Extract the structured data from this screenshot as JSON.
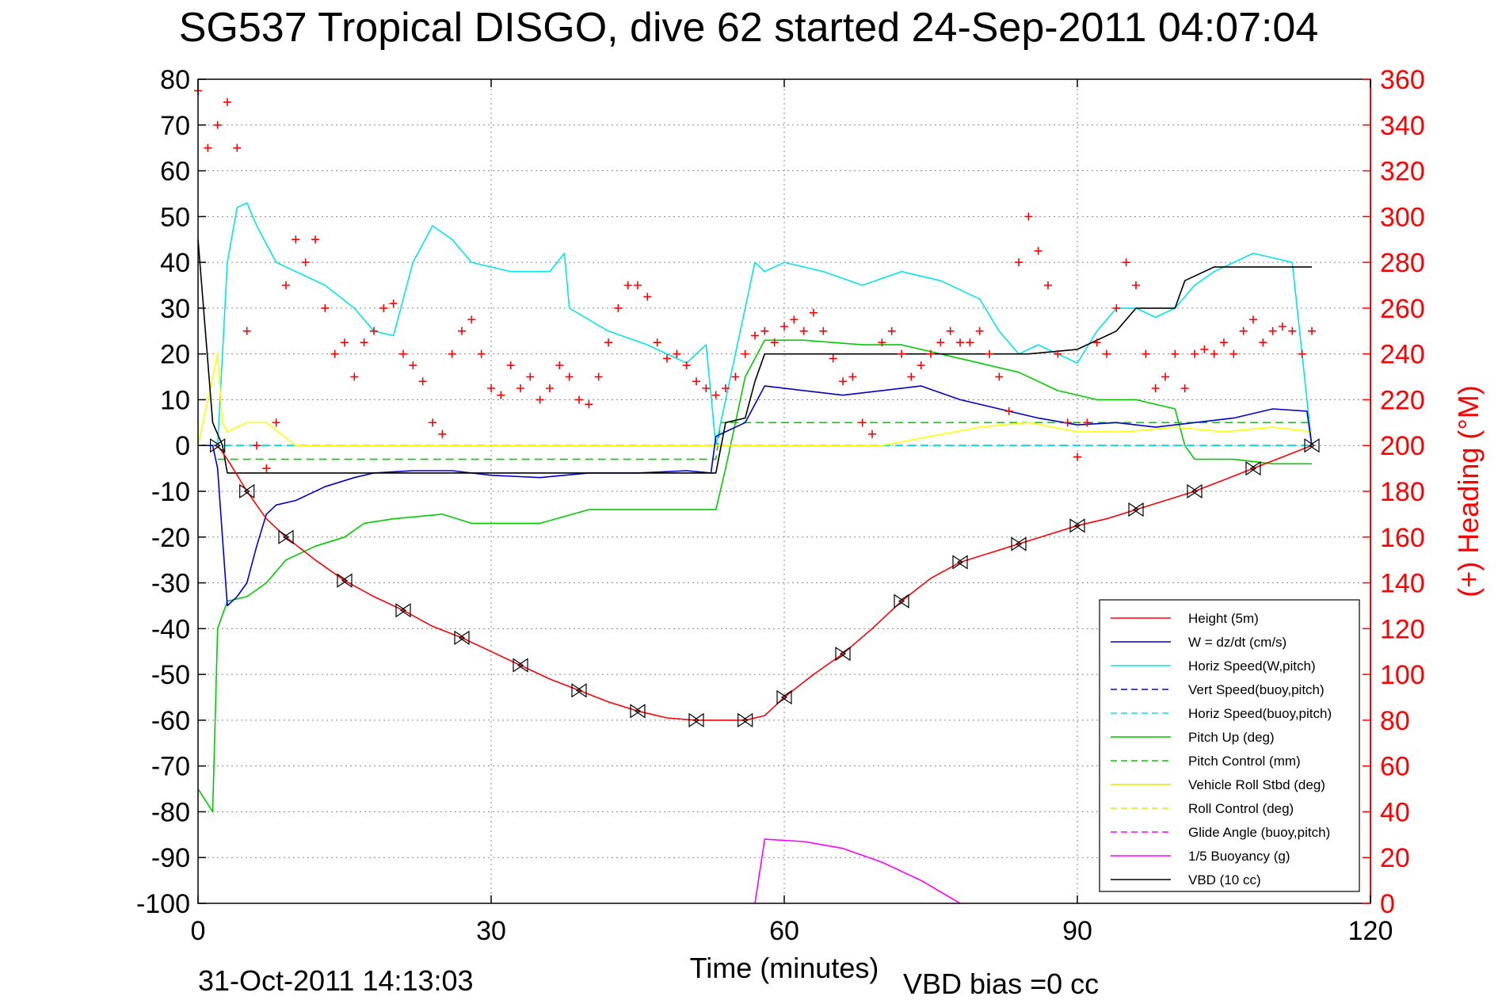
{
  "title": "SG537 Tropical DISGO, dive 62 started 24-Sep-2011 04:07:04",
  "footer": {
    "timestamp": "31-Oct-2011 14:13:03",
    "vbd_bias": "VBD bias =0 cc"
  },
  "colors": {
    "height": "#ff0000",
    "w": "#0000cc",
    "horiz_speed": "#00e5ee",
    "vert_speed_buoy": "#0000ff",
    "horiz_speed_buoy": "#00e5ee",
    "pitch_up": "#00cc00",
    "pitch_control": "#00cc00",
    "roll": "#ffff00",
    "roll_control": "#ffff00",
    "glide_angle": "#ff00ff",
    "buoyancy": "#ff00ff",
    "vbd": "#000000",
    "heading": "#ff0000"
  },
  "chart_data": {
    "type": "line",
    "title": "SG537 Tropical DISGO, dive 62 started 24-Sep-2011 04:07:04",
    "xlabel": "Time (minutes)",
    "ylabel": "",
    "ylabel_right": "(+) Heading (°M)",
    "xlim": [
      0,
      120
    ],
    "ylim": [
      -100,
      80
    ],
    "ylim_right": [
      0,
      360
    ],
    "grid": true,
    "legend_position": "bottom-right",
    "x_ticks": [
      "0",
      "30",
      "60",
      "90",
      "120"
    ],
    "y_ticks": [
      "80",
      "70",
      "60",
      "50",
      "40",
      "30",
      "20",
      "10",
      "0",
      "-10",
      "-20",
      "-30",
      "-40",
      "-50",
      "-60",
      "-70",
      "-80",
      "-90",
      "-100"
    ],
    "y_ticks_right": [
      "360",
      "340",
      "320",
      "300",
      "280",
      "260",
      "240",
      "220",
      "200",
      "180",
      "160",
      "140",
      "120",
      "100",
      "80",
      "60",
      "40",
      "20",
      "0"
    ],
    "series": [
      {
        "name": "Height (5m)",
        "style": "solid",
        "color": "#ff0000",
        "x": [
          2,
          3,
          5,
          7,
          9,
          12,
          15,
          18,
          21,
          24,
          27,
          30,
          33,
          36,
          39,
          42,
          45,
          48,
          51,
          54,
          56,
          58,
          60,
          63,
          66,
          69,
          72,
          75,
          78,
          81,
          84,
          87,
          90,
          93,
          96,
          99,
          102,
          105,
          108,
          111,
          114
        ],
        "y": [
          0,
          -3,
          -10,
          -16,
          -20,
          -25,
          -29.5,
          -33,
          -36,
          -39.5,
          -42,
          -45,
          -48,
          -51,
          -53.5,
          -56,
          -58,
          -59.5,
          -60,
          -60,
          -60,
          -59,
          -55,
          -50,
          -45.5,
          -40,
          -34,
          -29,
          -25.5,
          -23.5,
          -21.5,
          -19.5,
          -17.5,
          -16,
          -14,
          -12,
          -10,
          -7.5,
          -5,
          -2.5,
          0
        ]
      },
      {
        "name": "W = dz/dt (cm/s)",
        "style": "solid",
        "color": "#0000cc",
        "x": [
          0.5,
          1.5,
          2,
          2.5,
          3,
          4,
          5,
          6,
          7,
          8,
          10,
          13,
          16,
          18,
          22,
          26,
          30,
          35,
          40,
          45,
          50,
          52.5,
          53,
          54,
          56,
          58,
          62,
          66,
          70,
          74,
          78,
          82,
          86,
          90,
          94,
          98,
          102,
          106,
          110,
          113.5,
          114
        ],
        "y": [
          0,
          0,
          -5,
          -20,
          -35,
          -33,
          -30,
          -22,
          -15,
          -13,
          -12,
          -9,
          -7,
          -6,
          -5.5,
          -5.5,
          -6.5,
          -7,
          -6,
          -6,
          -5.5,
          -6,
          2,
          3,
          5,
          13,
          12,
          11,
          12,
          13,
          10,
          8,
          6,
          4.5,
          5,
          4,
          5,
          6,
          8,
          7.5,
          0
        ]
      },
      {
        "name": "Horiz Speed(W,pitch)",
        "style": "solid",
        "color": "#00e5ee",
        "x": [
          2,
          3,
          4,
          5,
          6,
          8,
          10,
          13,
          16,
          18,
          20,
          22,
          24,
          26,
          28,
          32,
          36,
          37.5,
          38,
          42,
          46,
          50,
          52,
          53,
          55,
          57,
          58,
          60,
          64,
          68,
          72,
          76,
          80,
          82,
          84,
          86,
          88,
          90,
          92,
          94,
          96,
          98,
          100,
          102,
          104,
          108,
          112,
          114
        ],
        "y": [
          0,
          40,
          52,
          53,
          48,
          40,
          38,
          35,
          30,
          25,
          24,
          40,
          48,
          45,
          40,
          38,
          38,
          42,
          30,
          25,
          22,
          18,
          22,
          0,
          20,
          40,
          38,
          40,
          38,
          35,
          38,
          36,
          32,
          25,
          20,
          22,
          20,
          18,
          25,
          30,
          30,
          28,
          30,
          35,
          38,
          42,
          40,
          0
        ]
      },
      {
        "name": "Vert Speed(buoy,pitch)",
        "style": "dashed",
        "color": "#0000ff",
        "x": [
          0,
          114
        ],
        "y": [
          0,
          0
        ]
      },
      {
        "name": "Horiz Speed(buoy,pitch)",
        "style": "dashed",
        "color": "#00e5ee",
        "x": [
          0,
          114
        ],
        "y": [
          0,
          0
        ]
      },
      {
        "name": "Pitch Up (deg)",
        "style": "solid",
        "color": "#00cc00",
        "x": [
          0,
          1.5,
          2,
          3,
          5,
          7,
          9,
          12,
          15,
          17,
          20,
          25,
          28,
          35,
          40,
          42,
          45,
          50,
          53,
          54,
          56,
          58,
          62,
          68,
          72,
          76,
          80,
          84,
          88,
          92,
          96,
          100,
          101,
          102,
          106,
          110,
          114
        ],
        "y": [
          -75,
          -80,
          -40,
          -34,
          -33,
          -30,
          -25,
          -22,
          -20,
          -17,
          -16,
          -15,
          -17,
          -17,
          -14,
          -14,
          -14,
          -14,
          -14,
          -5,
          15,
          23,
          23,
          22,
          22,
          20,
          18,
          16,
          12,
          10,
          10,
          8,
          0,
          -3,
          -3,
          -4,
          -4
        ]
      },
      {
        "name": "Pitch Control (mm)",
        "style": "dashed",
        "color": "#00cc00",
        "x": [
          2,
          53,
          53.5,
          114
        ],
        "y": [
          -3,
          -3,
          5,
          5
        ]
      },
      {
        "name": "Vehicle Roll Stbd (deg)",
        "style": "solid",
        "color": "#ffff00",
        "x": [
          0,
          2,
          2.5,
          3,
          5,
          7,
          10,
          16,
          20,
          25,
          30,
          40,
          45,
          50,
          53,
          55,
          60,
          65,
          70,
          75,
          80,
          85,
          90,
          95,
          100,
          105,
          110,
          114
        ],
        "y": [
          0,
          20,
          5,
          3,
          5,
          5,
          0,
          0,
          0,
          0,
          0,
          0,
          0,
          0,
          0,
          0,
          0,
          0,
          0,
          2,
          4,
          5,
          3,
          3,
          4,
          3,
          4,
          3
        ]
      },
      {
        "name": "Roll Control (deg)",
        "style": "dashed",
        "color": "#ffff00",
        "x": [
          0,
          114
        ],
        "y": [
          0,
          0
        ]
      },
      {
        "name": "Glide Angle (buoy,pitch)",
        "style": "dashed",
        "color": "#ff00ff",
        "x": [
          0,
          114
        ],
        "y": [
          0,
          0
        ]
      },
      {
        "name": "1/5 Buoyancy (g)",
        "style": "solid",
        "color": "#ff00ff",
        "x": [
          57,
          58,
          62,
          66,
          70,
          74,
          78
        ],
        "y": [
          -100,
          -86,
          -86.5,
          -88,
          -91,
          -95,
          -100
        ]
      },
      {
        "name": "VBD (10 cc)",
        "style": "solid",
        "color": "#000000",
        "x": [
          0,
          1.5,
          2.5,
          3,
          53,
          54,
          56,
          57,
          58,
          62,
          85,
          90,
          94,
          96,
          100,
          101,
          104,
          114
        ],
        "y": [
          45,
          5,
          0,
          -6,
          -6,
          5,
          6,
          14,
          20,
          20,
          20,
          21,
          25,
          30,
          30,
          36,
          39,
          39
        ]
      },
      {
        "name": "(+) Heading",
        "axis": "right",
        "style": "plus-markers",
        "color": "#ff0000",
        "x": [
          0,
          1,
          2,
          3,
          4,
          5,
          6,
          7,
          8,
          9,
          10,
          11,
          12,
          13,
          14,
          15,
          16,
          17,
          18,
          19,
          20,
          21,
          22,
          23,
          24,
          25,
          26,
          27,
          28,
          29,
          30,
          31,
          32,
          33,
          34,
          35,
          36,
          37,
          38,
          39,
          40,
          41,
          42,
          43,
          44,
          45,
          46,
          47,
          48,
          49,
          50,
          51,
          52,
          53,
          54,
          55,
          56,
          57,
          58,
          59,
          60,
          61,
          62,
          63,
          64,
          65,
          66,
          67,
          68,
          69,
          70,
          71,
          72,
          73,
          74,
          75,
          76,
          77,
          78,
          79,
          80,
          81,
          82,
          83,
          84,
          85,
          86,
          87,
          88,
          89,
          90,
          91,
          92,
          93,
          94,
          95,
          96,
          97,
          98,
          99,
          100,
          101,
          102,
          103,
          104,
          105,
          106,
          107,
          108,
          109,
          110,
          111,
          112,
          113,
          114
        ],
        "y": [
          355,
          330,
          340,
          350,
          330,
          250,
          200,
          190,
          210,
          270,
          290,
          280,
          290,
          260,
          240,
          245,
          230,
          245,
          250,
          260,
          262,
          240,
          235,
          228,
          210,
          205,
          240,
          250,
          255,
          240,
          225,
          222,
          235,
          225,
          230,
          220,
          225,
          235,
          230,
          220,
          218,
          230,
          245,
          260,
          270,
          270,
          265,
          245,
          238,
          240,
          235,
          228,
          225,
          222,
          225,
          230,
          240,
          248,
          250,
          245,
          252,
          255,
          250,
          258,
          250,
          238,
          228,
          230,
          210,
          205,
          245,
          250,
          240,
          230,
          235,
          240,
          245,
          250,
          245,
          245,
          250,
          240,
          230,
          215,
          280,
          300,
          285,
          270,
          240,
          210,
          195,
          210,
          245,
          240,
          260,
          280,
          270,
          240,
          225,
          230,
          240,
          225,
          240,
          242,
          240,
          245,
          240,
          250,
          255,
          245,
          250,
          252,
          250,
          240,
          250
        ]
      }
    ]
  },
  "legend": {
    "items": [
      {
        "label": "Height (5m)",
        "color": "#ff0000",
        "dash": ""
      },
      {
        "label": "W = dz/dt (cm/s)",
        "color": "#0000cc",
        "dash": ""
      },
      {
        "label": "Horiz Speed(W,pitch)",
        "color": "#00e5ee",
        "dash": ""
      },
      {
        "label": "Vert Speed(buoy,pitch)",
        "color": "#0000ff",
        "dash": "8,5"
      },
      {
        "label": "Horiz Speed(buoy,pitch)",
        "color": "#00e5ee",
        "dash": "8,5"
      },
      {
        "label": "Pitch Up (deg)",
        "color": "#00cc00",
        "dash": ""
      },
      {
        "label": "Pitch Control (mm)",
        "color": "#00cc00",
        "dash": "8,5"
      },
      {
        "label": "Vehicle Roll Stbd (deg)",
        "color": "#e6e600",
        "dash": ""
      },
      {
        "label": "Roll Control (deg)",
        "color": "#e6e600",
        "dash": "8,5"
      },
      {
        "label": "Glide Angle (buoy,pitch)",
        "color": "#ff00ff",
        "dash": "8,5"
      },
      {
        "label": "1/5 Buoyancy (g)",
        "color": "#ff00ff",
        "dash": ""
      },
      {
        "label": "VBD (10 cc)",
        "color": "#000000",
        "dash": ""
      }
    ]
  }
}
